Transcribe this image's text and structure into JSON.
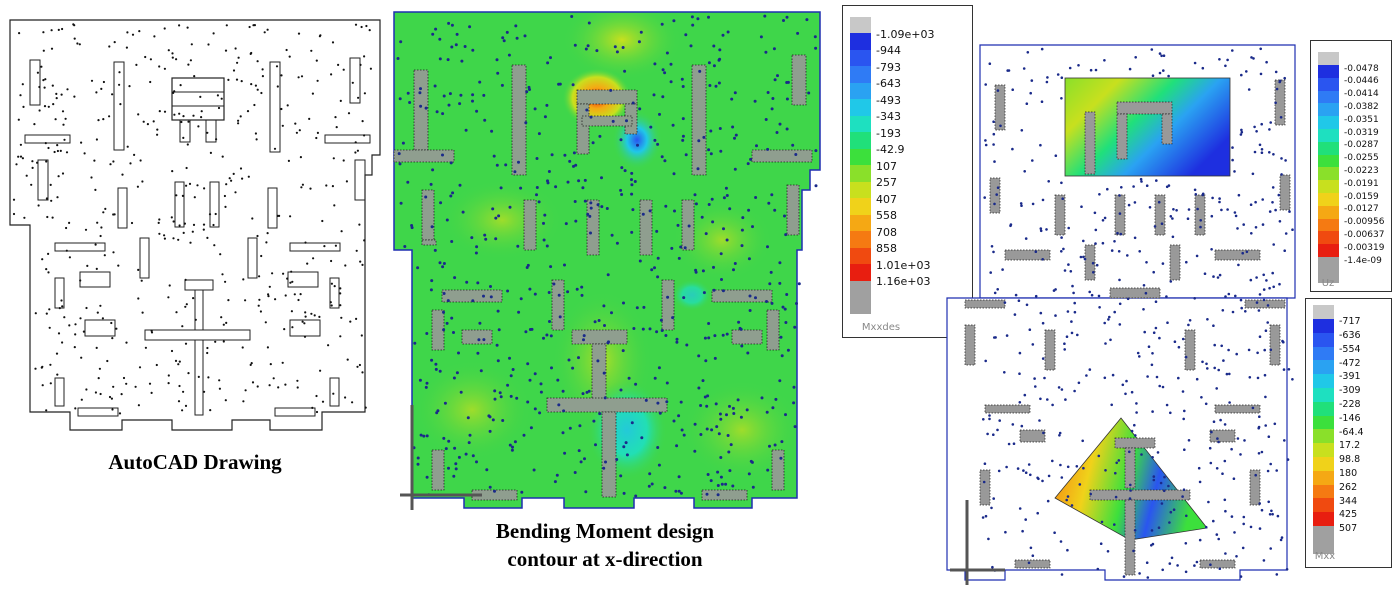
{
  "captions": {
    "autocad": "AutoCAD Drawing",
    "bending_line1": "Bending Moment design",
    "bending_line2": "contour at x-direction"
  },
  "legend_mxxdes": {
    "title": "Mxxdes",
    "labels": [
      "-1.09e+03",
      "-944",
      "-793",
      "-643",
      "-493",
      "-343",
      "-193",
      "-42.9",
      "107",
      "257",
      "407",
      "558",
      "708",
      "858",
      "1.01e+03",
      "1.16e+03"
    ]
  },
  "legend_uz": {
    "title": "Uz",
    "labels": [
      "-0.0478",
      "-0.0446",
      "-0.0414",
      "-0.0382",
      "-0.0351",
      "-0.0319",
      "-0.0287",
      "-0.0255",
      "-0.0223",
      "-0.0191",
      "-0.0159",
      "-0.0127",
      "-0.00956",
      "-0.00637",
      "-0.00319",
      "-1.4e-09"
    ]
  },
  "legend_mxx": {
    "title": "Mxx",
    "labels": [
      "-717",
      "-636",
      "-554",
      "-472",
      "-391",
      "-309",
      "-228",
      "-146",
      "-64.4",
      "17.2",
      "98.8",
      "180",
      "262",
      "344",
      "425",
      "507"
    ]
  },
  "colors": {
    "scale": [
      "#c8c8c8",
      "#1e2fe0",
      "#2a55f0",
      "#2f7bf5",
      "#2aa2f2",
      "#20c8e8",
      "#1ee0c0",
      "#20e07a",
      "#3ce03c",
      "#8ae02a",
      "#c8e01e",
      "#f0d21a",
      "#f5a814",
      "#f57a12",
      "#f04a10",
      "#e81e10",
      "#a0a0a0"
    ],
    "contour_green": "#3fd64a",
    "outline_blue": "#1e2fb0"
  }
}
